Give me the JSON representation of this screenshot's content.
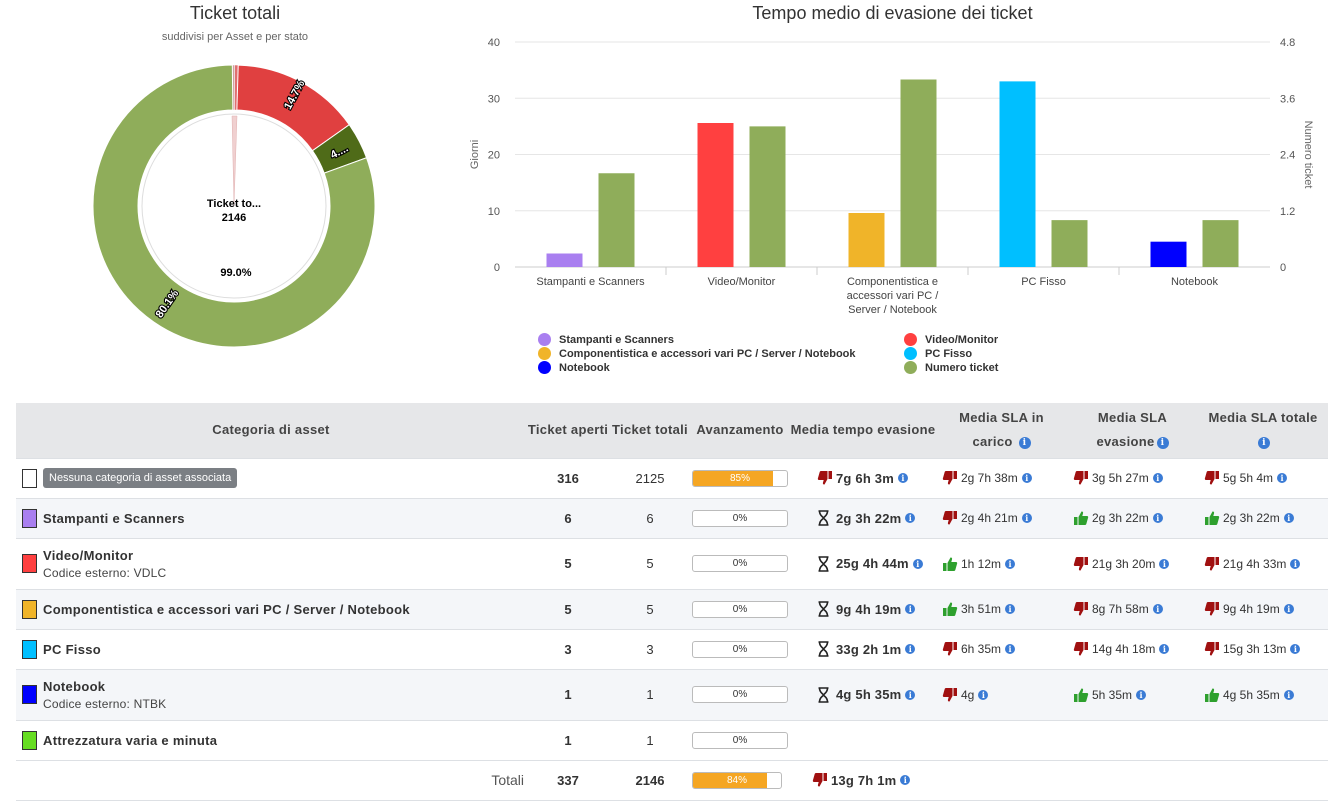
{
  "donut": {
    "title": "Ticket totali",
    "subtitle": "suddivisi per Asset e per stato",
    "center_label": "Ticket to...",
    "center_value": "2146",
    "inner_label": "99.0%",
    "outer_labels": [
      "14.7%",
      "4....",
      "80.1%"
    ]
  },
  "chart_data": [
    {
      "type": "pie",
      "title": "Ticket totali",
      "subtitle": "suddivisi per Asset e per stato",
      "slices": [
        {
          "label": "14.7%",
          "value": 14.7,
          "color": "#e04040"
        },
        {
          "label": "4....",
          "value": 4.2,
          "color": "#4f6b18"
        },
        {
          "label": "80.1%",
          "value": 80.1,
          "color": "#8fad5a"
        }
      ],
      "inner": {
        "label": "99.0%",
        "value": 99.0
      }
    },
    {
      "type": "bar",
      "title": "Tempo medio di evasione dei ticket",
      "categories": [
        "Stampanti e Scanners",
        "Video/Monitor",
        "Componentistica e accessori vari PC / Server / Notebook",
        "PC Fisso",
        "Notebook"
      ],
      "ylabel": "Giorni",
      "y2label": "Numero ticket",
      "ylim": [
        0,
        40
      ],
      "y2lim": [
        0,
        4.8
      ],
      "yticks": [
        "0",
        "10",
        "20",
        "30",
        "40"
      ],
      "y2ticks": [
        "0",
        "1.2",
        "2.4",
        "3.6",
        "4.8"
      ],
      "series": [
        {
          "name": "Stampanti e Scanners",
          "color": "#a97ff0",
          "values": [
            2.4,
            null,
            null,
            null,
            null
          ]
        },
        {
          "name": "Video/Monitor",
          "color": "#ff4040",
          "values": [
            null,
            25.6,
            null,
            null,
            null
          ]
        },
        {
          "name": "Componentistica e accessori vari PC / Server / Notebook",
          "color": "#f0b429",
          "values": [
            null,
            null,
            9.6,
            null,
            null
          ]
        },
        {
          "name": "PC Fisso",
          "color": "#00bfff",
          "values": [
            null,
            null,
            null,
            33.0,
            null
          ]
        },
        {
          "name": "Notebook",
          "color": "#0000ff",
          "values": [
            null,
            null,
            null,
            null,
            4.5
          ]
        },
        {
          "name": "Numero ticket",
          "color": "#8fad5a",
          "axis": "right",
          "values": [
            2,
            3,
            4,
            1,
            1
          ]
        }
      ]
    }
  ],
  "table": {
    "headers": {
      "category": "Categoria di asset",
      "open": "Ticket aperti",
      "total": "Ticket totali",
      "progress": "Avanzamento",
      "avg_time": "Media tempo evasione",
      "sla_taken_1": "Media SLA in",
      "sla_taken_2": "carico",
      "sla_eva_1": "Media SLA",
      "sla_eva_2": "evasione",
      "sla_total": "Media SLA totale"
    },
    "rows": [
      {
        "name": "Nessuna categoria di asset associata",
        "color": "#ffffff",
        "badge": true,
        "open": "316",
        "total": "2125",
        "progress": "85%",
        "progress_value": 85,
        "avg_time": "7g 6h 3m",
        "avg_icon": "thumbs-down",
        "sla_taken": "2g 7h 38m",
        "sla_taken_icon": "thumbs-down",
        "sla_eva": "3g 5h 27m",
        "sla_eva_icon": "thumbs-down",
        "sla_total": "5g 5h 4m",
        "sla_total_icon": "thumbs-down"
      },
      {
        "name": "Stampanti e Scanners",
        "color": "#a97ff0",
        "open": "6",
        "total": "6",
        "progress": "0%",
        "progress_value": 0,
        "avg_time": "2g 3h 22m",
        "avg_icon": "hourglass",
        "sla_taken": "2g 4h 21m",
        "sla_taken_icon": "thumbs-down",
        "sla_eva": "2g 3h 22m",
        "sla_eva_icon": "thumbs-up",
        "sla_total": "2g 3h 22m",
        "sla_total_icon": "thumbs-up"
      },
      {
        "name": "Video/Monitor",
        "sub": "Codice esterno: VDLC",
        "color": "#ff4040",
        "open": "5",
        "total": "5",
        "progress": "0%",
        "progress_value": 0,
        "avg_time": "25g 4h 44m",
        "avg_icon": "hourglass",
        "sla_taken": "1h 12m",
        "sla_taken_icon": "thumbs-up",
        "sla_eva": "21g 3h 20m",
        "sla_eva_icon": "thumbs-down",
        "sla_total": "21g 4h 33m",
        "sla_total_icon": "thumbs-down"
      },
      {
        "name": "Componentistica e accessori vari PC / Server / Notebook",
        "color": "#f0b429",
        "open": "5",
        "total": "5",
        "progress": "0%",
        "progress_value": 0,
        "avg_time": "9g 4h 19m",
        "avg_icon": "hourglass",
        "sla_taken": "3h 51m",
        "sla_taken_icon": "thumbs-up",
        "sla_eva": "8g 7h 58m",
        "sla_eva_icon": "thumbs-down",
        "sla_total": "9g 4h 19m",
        "sla_total_icon": "thumbs-down"
      },
      {
        "name": "PC Fisso",
        "color": "#00bfff",
        "open": "3",
        "total": "3",
        "progress": "0%",
        "progress_value": 0,
        "avg_time": "33g 2h 1m",
        "avg_icon": "hourglass",
        "sla_taken": "6h 35m",
        "sla_taken_icon": "thumbs-down",
        "sla_eva": "14g 4h 18m",
        "sla_eva_icon": "thumbs-down",
        "sla_total": "15g 3h 13m",
        "sla_total_icon": "thumbs-down"
      },
      {
        "name": "Notebook",
        "sub": "Codice esterno: NTBK",
        "color": "#0000ff",
        "open": "1",
        "total": "1",
        "progress": "0%",
        "progress_value": 0,
        "avg_time": "4g 5h 35m",
        "avg_icon": "hourglass",
        "sla_taken": "4g",
        "sla_taken_icon": "thumbs-down",
        "sla_eva": "5h 35m",
        "sla_eva_icon": "thumbs-up",
        "sla_total": "4g 5h 35m",
        "sla_total_icon": "thumbs-up"
      },
      {
        "name": "Attrezzatura varia e minuta",
        "color": "#66dd22",
        "open": "1",
        "total": "1",
        "progress": "0%",
        "progress_value": 0
      }
    ],
    "totals": {
      "label": "Totali",
      "open": "337",
      "total": "2146",
      "progress": "84%",
      "progress_value": 84,
      "avg_time": "13g 7h 1m",
      "avg_icon": "thumbs-down"
    }
  }
}
